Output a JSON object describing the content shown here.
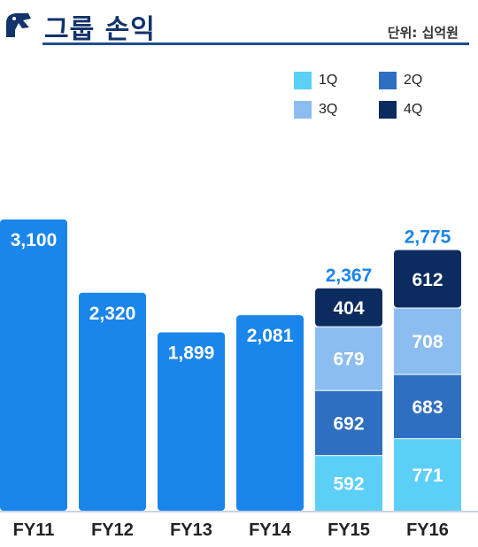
{
  "header": {
    "title": "그룹 손익",
    "unit": "단위: 십억원"
  },
  "colors": {
    "total": "#1a85ea",
    "q1": "#5ccff7",
    "q2": "#2f6fc2",
    "q3": "#8cbdf0",
    "q4": "#0c2c60",
    "total_label": "#1a85ea",
    "brand": "#12336b"
  },
  "legend": [
    {
      "key": "q1",
      "label": "1Q"
    },
    {
      "key": "q2",
      "label": "2Q"
    },
    {
      "key": "q3",
      "label": "3Q"
    },
    {
      "key": "q4",
      "label": "4Q"
    }
  ],
  "chart_data": {
    "type": "bar",
    "categories": [
      "FY11",
      "FY12",
      "FY13",
      "FY14",
      "FY15",
      "FY16"
    ],
    "totals": [
      3100,
      2320,
      1899,
      2081,
      2367,
      2775
    ],
    "total_labels": [
      "3,100",
      "2,320",
      "1,899",
      "2,081",
      "2,367",
      "2,775"
    ],
    "stacked": [
      false,
      false,
      false,
      false,
      true,
      true
    ],
    "series": [
      {
        "name": "1Q",
        "values": [
          null,
          null,
          null,
          null,
          592,
          771
        ]
      },
      {
        "name": "2Q",
        "values": [
          null,
          null,
          null,
          null,
          692,
          683
        ]
      },
      {
        "name": "3Q",
        "values": [
          null,
          null,
          null,
          null,
          679,
          708
        ]
      },
      {
        "name": "4Q",
        "values": [
          null,
          null,
          null,
          null,
          404,
          612
        ]
      }
    ],
    "ylim": [
      0,
      3100
    ]
  }
}
